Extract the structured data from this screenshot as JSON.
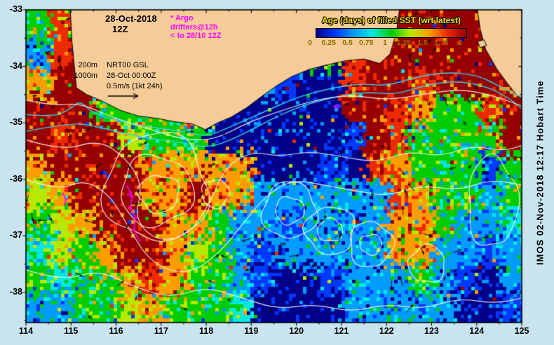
{
  "figure": {
    "bg_color": "#c9e4ee",
    "land_color": "#f5cb97",
    "coast_color": "#000000",
    "frame_color": "#000000"
  },
  "header": {
    "date": "28-Oct-2018",
    "run": "12Z",
    "argo": {
      "marker": "*",
      "title": "Argo",
      "line2": "drifters@12h",
      "line3": "to 28/10 12Z",
      "marker2": "<",
      "color": "#ff00ff"
    }
  },
  "annotations": {
    "isobath_200": "200m",
    "isobath_1000": "1000m",
    "model": "NRT00 GSL",
    "model_time": "28-Oct 00:00Z",
    "scale": "0.5m/s (1kt 24h)"
  },
  "legend": {
    "title": "Age (days) of filled SST (wrt latest)",
    "title_color": "#ffe400",
    "tick_color": "#8a7000",
    "tick_labels": [
      "0",
      "0.25",
      "0.5",
      "0.75",
      "1",
      "1.25",
      "1.5",
      "1.75",
      "2"
    ]
  },
  "sidebar": {
    "credit": "IMOS 02-Nov-2018 12:17 Hobart Time"
  },
  "axes": {
    "x_tick_labels": [
      "114",
      "115",
      "116",
      "117",
      "118",
      "119",
      "120",
      "121",
      "122",
      "123",
      "124",
      "125"
    ],
    "y_tick_labels": [
      "-33",
      "-34",
      "-35",
      "-36",
      "-37",
      "-38"
    ],
    "x_range": [
      114,
      125
    ],
    "y_range": [
      -38.53,
      -33
    ]
  },
  "chart_data": {
    "type": "heatmap",
    "variable": "Age (days) of filled SST (wrt latest)",
    "units": "days",
    "lon_range": [
      114,
      125
    ],
    "lat_range": [
      -38.5,
      -33
    ],
    "cell_deg": 0.5,
    "levels": [
      0,
      0.25,
      0.5,
      0.75,
      1,
      1.25,
      1.5,
      1.75,
      2
    ],
    "palette": [
      "#000089",
      "#0038ff",
      "#009cff",
      "#00e8e0",
      "#00cc00",
      "#b8e800",
      "#ff9d00",
      "#ee2a00",
      "#960000"
    ],
    "grid_rows_north_to_south": [
      [
        1,
        1.75,
        1,
        1,
        1,
        1,
        1,
        1,
        1,
        1,
        1,
        1,
        1,
        1,
        1.75,
        2,
        2,
        2,
        2,
        2,
        2,
        2
      ],
      [
        0.5,
        1.75,
        2,
        1,
        1,
        1,
        1,
        1,
        1,
        1,
        1,
        1,
        1,
        1,
        1.75,
        2,
        2,
        2,
        2,
        2,
        2,
        2
      ],
      [
        1.5,
        2,
        2,
        1,
        1,
        1,
        1,
        1,
        1,
        0.75,
        0.5,
        0.25,
        0,
        0,
        1.75,
        2,
        2,
        1.75,
        2,
        2,
        2,
        2
      ],
      [
        2,
        2,
        2,
        1,
        1,
        1,
        1,
        1.25,
        0,
        0,
        0,
        0,
        0,
        0,
        2,
        2,
        1.75,
        1.5,
        1,
        1,
        1.75,
        2
      ],
      [
        2,
        1.75,
        2,
        2,
        1.25,
        1,
        1,
        1,
        0,
        0,
        0,
        0,
        0,
        0,
        0.25,
        2,
        1.75,
        1,
        1,
        1,
        1,
        2
      ],
      [
        1.5,
        2,
        2,
        2,
        2,
        1.5,
        1.5,
        1.5,
        1.5,
        1.5,
        0,
        0,
        0,
        0.25,
        0,
        1.75,
        1.5,
        1,
        1,
        1,
        0.25,
        1
      ],
      [
        1.25,
        1.5,
        2,
        2,
        2,
        1.5,
        1.5,
        2,
        1.5,
        1.5,
        0.5,
        0.5,
        0.5,
        0.5,
        0.5,
        0.5,
        1.75,
        1.5,
        1,
        1,
        0.5,
        1
      ],
      [
        1,
        1.25,
        1.5,
        2,
        2,
        2,
        1.5,
        1.5,
        1,
        0.5,
        0.5,
        0.25,
        0.5,
        0.5,
        0.5,
        0.5,
        1.5,
        1.5,
        1,
        0.5,
        0.5,
        0.75
      ],
      [
        0.75,
        1.25,
        1,
        1.5,
        2,
        2,
        1.5,
        1.25,
        1,
        0.5,
        0.25,
        0.5,
        0.5,
        0.5,
        0.5,
        0.5,
        1.5,
        1.5,
        0.5,
        0.5,
        0.25,
        0.5
      ],
      [
        1,
        0.75,
        1,
        1,
        1.5,
        1.75,
        1.5,
        1,
        1,
        0.5,
        0.25,
        0,
        0,
        0.25,
        0.5,
        0.5,
        0.5,
        1,
        0.5,
        0.25,
        0,
        0.5
      ],
      [
        0.5,
        0.5,
        1,
        1,
        1.25,
        1.5,
        1,
        1,
        1,
        0.75,
        0,
        0,
        0,
        0,
        0.5,
        0.5,
        0.5,
        0.5,
        0.5,
        0,
        0,
        0.25
      ]
    ],
    "seed": 12345,
    "arrow_seed": 777,
    "arrow_count": 95,
    "arrow_color": "#000000",
    "isobath_color": "#35d4ef",
    "contour_color": "rgba(255,255,255,0.88)",
    "drifter_color": "#ff00ff",
    "drifter_glyph": "<",
    "land_polygons": [
      [
        [
          114.97,
          -32.8
        ],
        [
          115.02,
          -33.55
        ],
        [
          115.08,
          -34.05
        ],
        [
          115.12,
          -34.38
        ],
        [
          115.35,
          -34.5
        ],
        [
          115.7,
          -34.62
        ],
        [
          116.1,
          -34.78
        ],
        [
          116.5,
          -34.88
        ],
        [
          116.9,
          -34.92
        ],
        [
          117.3,
          -34.98
        ],
        [
          117.7,
          -35.02
        ],
        [
          117.98,
          -35.12
        ],
        [
          118.25,
          -35.0
        ],
        [
          118.55,
          -34.9
        ],
        [
          118.9,
          -34.73
        ],
        [
          119.2,
          -34.55
        ],
        [
          119.55,
          -34.35
        ],
        [
          119.9,
          -34.18
        ],
        [
          120.3,
          -34.05
        ],
        [
          120.7,
          -33.97
        ],
        [
          121.1,
          -33.9
        ],
        [
          121.5,
          -33.87
        ],
        [
          121.85,
          -33.95
        ],
        [
          122.08,
          -33.78
        ],
        [
          122.22,
          -33.4
        ],
        [
          122.32,
          -32.8
        ]
      ],
      [
        [
          123.98,
          -32.8
        ],
        [
          124.08,
          -33.35
        ],
        [
          124.2,
          -33.7
        ],
        [
          124.45,
          -34.05
        ],
        [
          124.68,
          -34.3
        ],
        [
          124.88,
          -34.5
        ],
        [
          125.15,
          -34.62
        ],
        [
          125.15,
          -32.8
        ]
      ],
      [
        [
          124.02,
          -33.56
        ],
        [
          124.16,
          -33.53
        ],
        [
          124.22,
          -33.63
        ],
        [
          124.08,
          -33.67
        ]
      ]
    ],
    "coastline_lats": [
      [
        115,
        -33
      ],
      [
        115.1,
        -34.4
      ],
      [
        115.7,
        -34.62
      ],
      [
        116.5,
        -34.88
      ],
      [
        117.3,
        -34.98
      ],
      [
        118,
        -35.12
      ],
      [
        118.9,
        -34.73
      ],
      [
        119.9,
        -34.18
      ],
      [
        120.7,
        -33.97
      ],
      [
        121.5,
        -33.87
      ],
      [
        122.35,
        -33
      ]
    ],
    "isobaths": [
      [
        [
          114,
          -34.85
        ],
        [
          114.6,
          -34.9
        ],
        [
          115.0,
          -34.75
        ],
        [
          115.2,
          -34.6
        ],
        [
          115.5,
          -34.85
        ],
        [
          116.5,
          -35.05
        ],
        [
          117.5,
          -35.15
        ],
        [
          118.0,
          -35.25
        ],
        [
          118.6,
          -35.05
        ],
        [
          119.3,
          -34.8
        ],
        [
          120.0,
          -34.55
        ],
        [
          120.7,
          -34.4
        ],
        [
          121.4,
          -34.3
        ],
        [
          122.0,
          -34.35
        ],
        [
          122.6,
          -34.2
        ],
        [
          123.3,
          -34.1
        ],
        [
          124.0,
          -34.15
        ],
        [
          124.5,
          -34.35
        ],
        [
          125,
          -34.55
        ]
      ],
      [
        [
          114,
          -35.15
        ],
        [
          115,
          -35.0
        ],
        [
          115.5,
          -35.05
        ],
        [
          116.5,
          -35.25
        ],
        [
          117.5,
          -35.35
        ],
        [
          118.05,
          -35.45
        ],
        [
          118.7,
          -35.25
        ],
        [
          119.4,
          -34.95
        ],
        [
          120.1,
          -34.7
        ],
        [
          120.8,
          -34.55
        ],
        [
          121.5,
          -34.45
        ],
        [
          122.2,
          -34.5
        ],
        [
          122.8,
          -34.35
        ],
        [
          123.5,
          -34.25
        ],
        [
          124.2,
          -34.35
        ],
        [
          124.7,
          -34.55
        ],
        [
          125,
          -34.75
        ]
      ]
    ],
    "contour_lines": [
      [
        [
          114,
          -35.3
        ],
        [
          114.8,
          -35.5
        ],
        [
          115.6,
          -35.3
        ],
        [
          116.2,
          -35.6
        ],
        [
          116.6,
          -36.1
        ],
        [
          116.4,
          -36.7
        ],
        [
          116.9,
          -37.1
        ],
        [
          117.6,
          -37.0
        ],
        [
          118.1,
          -36.4
        ],
        [
          118.4,
          -35.8
        ],
        [
          119.0,
          -35.5
        ],
        [
          119.6,
          -35.6
        ],
        [
          120.3,
          -35.5
        ],
        [
          121.0,
          -35.6
        ],
        [
          121.8,
          -35.7
        ],
        [
          122.5,
          -35.5
        ],
        [
          123.2,
          -35.6
        ],
        [
          123.9,
          -35.4
        ],
        [
          124.6,
          -35.5
        ],
        [
          125,
          -35.4
        ]
      ],
      [
        [
          114,
          -36.0
        ],
        [
          114.7,
          -36.2
        ],
        [
          115.3,
          -36.0
        ],
        [
          115.9,
          -36.3
        ],
        [
          116.3,
          -36.9
        ],
        [
          116.8,
          -37.5
        ],
        [
          117.6,
          -37.7
        ],
        [
          118.3,
          -37.3
        ],
        [
          118.8,
          -36.8
        ],
        [
          119.3,
          -36.3
        ],
        [
          119.9,
          -36.0
        ],
        [
          120.6,
          -36.1
        ],
        [
          121.3,
          -36.2
        ],
        [
          122.0,
          -36.3
        ],
        [
          122.8,
          -36.1
        ],
        [
          123.6,
          -36.2
        ],
        [
          124.3,
          -36.0
        ],
        [
          125,
          -36.1
        ]
      ],
      [
        [
          114,
          -37.6
        ],
        [
          114.8,
          -37.8
        ],
        [
          115.6,
          -37.6
        ],
        [
          116.4,
          -37.9
        ],
        [
          117.2,
          -38.1
        ],
        [
          118.0,
          -37.9
        ],
        [
          118.8,
          -38.1
        ],
        [
          119.6,
          -38.3
        ],
        [
          120.4,
          -38.2
        ],
        [
          121.2,
          -38.35
        ],
        [
          122.0,
          -38.2
        ],
        [
          122.8,
          -38.3
        ],
        [
          123.6,
          -38.1
        ],
        [
          124.4,
          -38.2
        ],
        [
          125,
          -38.1
        ]
      ],
      [
        [
          114,
          -34.6
        ],
        [
          114.6,
          -34.7
        ],
        [
          115.2,
          -34.65
        ],
        [
          115.9,
          -34.9
        ],
        [
          116.7,
          -35.1
        ],
        [
          117.5,
          -35.3
        ],
        [
          118.2,
          -35.3
        ],
        [
          118.9,
          -35.0
        ],
        [
          119.6,
          -34.8
        ],
        [
          120.4,
          -34.6
        ],
        [
          121.2,
          -34.5
        ],
        [
          122.0,
          -34.6
        ],
        [
          122.8,
          -34.5
        ],
        [
          123.6,
          -34.4
        ],
        [
          124.3,
          -34.5
        ],
        [
          125,
          -34.7
        ]
      ]
    ],
    "contour_rings": [
      [
        119.85,
        -36.55,
        0.6,
        0.5
      ],
      [
        119.85,
        -36.55,
        0.32,
        0.24
      ],
      [
        120.75,
        -36.9,
        0.55,
        0.42
      ],
      [
        120.75,
        -36.9,
        0.28,
        0.2
      ],
      [
        121.65,
        -37.15,
        0.48,
        0.4
      ],
      [
        121.65,
        -37.15,
        0.24,
        0.18
      ],
      [
        116.9,
        -36.15,
        1.15,
        0.95
      ],
      [
        116.9,
        -36.2,
        0.8,
        0.62
      ],
      [
        116.95,
        -36.25,
        0.45,
        0.33
      ],
      [
        122.9,
        -37.5,
        0.4,
        0.33
      ],
      [
        124.35,
        -36.4,
        0.55,
        0.8
      ],
      [
        118.2,
        -36.25,
        0.3,
        0.25
      ]
    ],
    "drifter_tracks": [
      [
        [
          116.25,
          -36.12
        ],
        [
          116.38,
          -36.3
        ],
        [
          116.3,
          -36.5
        ],
        [
          116.45,
          -36.68
        ],
        [
          116.38,
          -36.9
        ],
        [
          116.52,
          -37.08
        ]
      ],
      [
        [
          114.82,
          -36.25
        ],
        [
          114.9,
          -36.35
        ],
        [
          114.85,
          -36.45
        ]
      ]
    ],
    "drifter_markers": [
      [
        120.88,
        -34.72
      ],
      [
        116.3,
        -36.28
      ]
    ]
  }
}
